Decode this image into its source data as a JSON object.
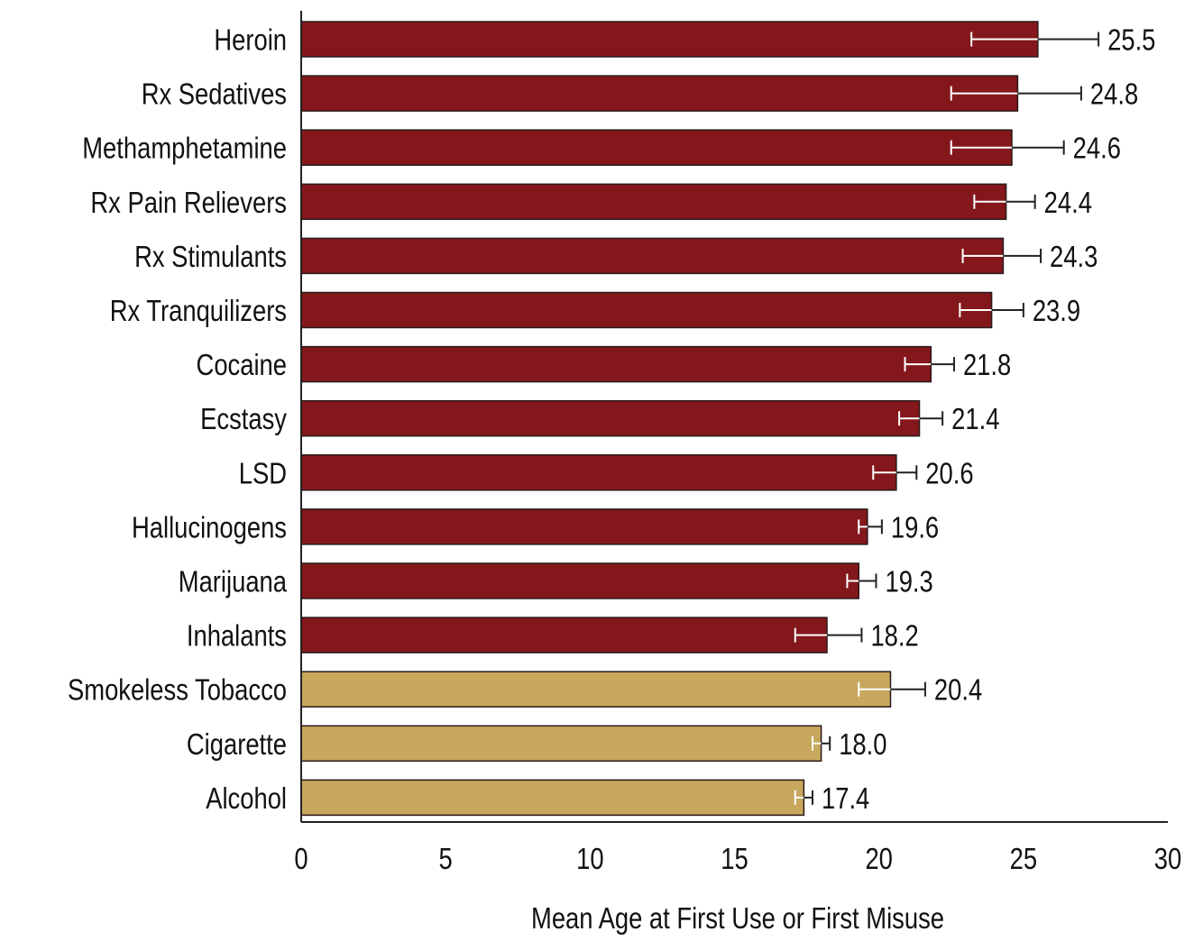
{
  "chart_data": {
    "type": "bar",
    "orientation": "horizontal",
    "title": "",
    "xlabel": "Mean Age at First Use or First Misuse",
    "ylabel": "",
    "xlim": [
      0,
      30
    ],
    "x_ticks": [
      "0",
      "5",
      "10",
      "15",
      "20",
      "25",
      "30"
    ],
    "grid": false,
    "legend": "none",
    "categories": [
      "Heroin",
      "Rx Sedatives",
      "Methamphetamine",
      "Rx Pain Relievers",
      "Rx Stimulants",
      "Rx Tranquilizers",
      "Cocaine",
      "Ecstasy",
      "LSD",
      "Hallucinogens",
      "Marijuana",
      "Inhalants",
      "Smokeless Tobacco",
      "Cigarette",
      "Alcohol"
    ],
    "values": [
      25.5,
      24.8,
      24.6,
      24.4,
      24.3,
      23.9,
      21.8,
      21.4,
      20.6,
      19.6,
      19.3,
      18.2,
      20.4,
      18.0,
      17.4
    ],
    "value_labels": [
      "25.5",
      "24.8",
      "24.6",
      "24.4",
      "24.3",
      "23.9",
      "21.8",
      "21.4",
      "20.6",
      "19.6",
      "19.3",
      "18.2",
      "20.4",
      "18.0",
      "17.4"
    ],
    "error_low": [
      23.2,
      22.5,
      22.5,
      23.3,
      22.9,
      22.8,
      20.9,
      20.7,
      19.8,
      19.3,
      18.9,
      17.1,
      19.3,
      17.7,
      17.1
    ],
    "error_high": [
      27.6,
      27.0,
      26.4,
      25.4,
      25.6,
      25.0,
      22.6,
      22.2,
      21.3,
      20.1,
      19.9,
      19.4,
      21.6,
      18.3,
      17.7
    ],
    "bar_colors": [
      "#84171b",
      "#84171b",
      "#84171b",
      "#84171b",
      "#84171b",
      "#84171b",
      "#84171b",
      "#84171b",
      "#84171b",
      "#84171b",
      "#84171b",
      "#84171b",
      "#c7a85d",
      "#c7a85d",
      "#c7a85d"
    ],
    "colors": {
      "drug": "#84171b",
      "legal_substance": "#c7a85d",
      "bar_stroke": "#2a1a1a",
      "axis": "#222222",
      "error_bar_on_bar": "#ffffff",
      "error_bar_off_bar": "#222222"
    }
  }
}
